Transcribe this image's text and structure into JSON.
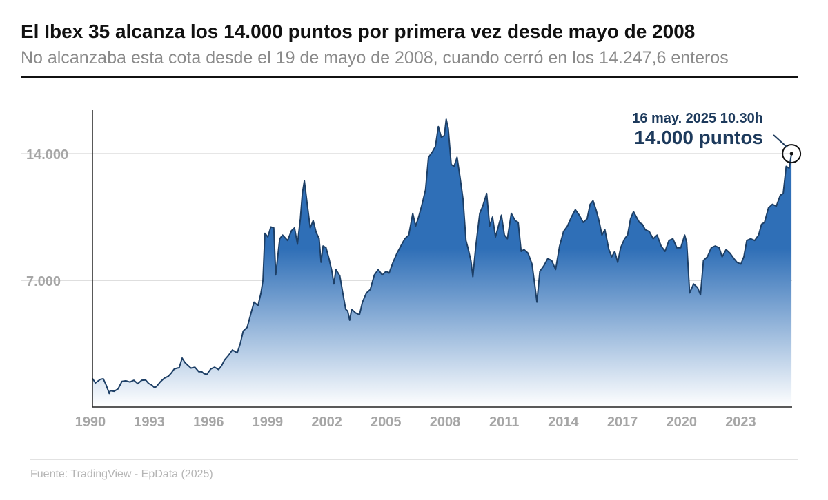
{
  "header": {
    "title": "El Ibex 35 alcanza los 14.000 puntos por primera vez desde mayo de 2008",
    "subtitle": "No alcanzaba esta cota desde el 19 de mayo de 2008, cuando cerró en los 14.247,6 enteros"
  },
  "source": "Fuente: TradingView - EpData (2025)",
  "colors": {
    "area_top": "#2f6fb7",
    "area_bottom": "#ffffff",
    "line": "#1d3f66",
    "annotation": "#1d3a5c",
    "tick_text": "#a6a6a6",
    "grid": "#bdbdbd"
  },
  "chart_data": {
    "type": "area",
    "title": "El Ibex 35 alcanza los 14.000 puntos por primera vez desde mayo de 2008",
    "xlabel": "",
    "ylabel": "",
    "xlim": [
      1989.9,
      2025.4
    ],
    "ylim": [
      0,
      16400
    ],
    "grid": true,
    "legend": "none",
    "x_ticks": [
      {
        "value": 1990,
        "label": "1990"
      },
      {
        "value": 1993,
        "label": "1993"
      },
      {
        "value": 1996,
        "label": "1996"
      },
      {
        "value": 1999,
        "label": "1999"
      },
      {
        "value": 2002,
        "label": "2002"
      },
      {
        "value": 2005,
        "label": "2005"
      },
      {
        "value": 2008,
        "label": "2008"
      },
      {
        "value": 2011,
        "label": "2011"
      },
      {
        "value": 2014,
        "label": "2014"
      },
      {
        "value": 2017,
        "label": "2017"
      },
      {
        "value": 2020,
        "label": "2020"
      },
      {
        "value": 2023,
        "label": "2023"
      }
    ],
    "y_ticks": [
      {
        "value": 7000,
        "label": "7.000"
      },
      {
        "value": 14000,
        "label": "14.000"
      }
    ],
    "series": [
      {
        "values": [
          [
            1989.9,
            1580
          ],
          [
            1990.05,
            1330
          ],
          [
            1990.3,
            1530
          ],
          [
            1990.45,
            1560
          ],
          [
            1990.6,
            1200
          ],
          [
            1990.75,
            750
          ],
          [
            1990.8,
            900
          ],
          [
            1991.0,
            870
          ],
          [
            1991.2,
            1000
          ],
          [
            1991.4,
            1420
          ],
          [
            1991.6,
            1450
          ],
          [
            1991.8,
            1380
          ],
          [
            1992.0,
            1480
          ],
          [
            1992.2,
            1290
          ],
          [
            1992.4,
            1480
          ],
          [
            1992.6,
            1490
          ],
          [
            1992.75,
            1300
          ],
          [
            1992.9,
            1220
          ],
          [
            1993.05,
            1070
          ],
          [
            1993.15,
            1130
          ],
          [
            1993.35,
            1400
          ],
          [
            1993.55,
            1600
          ],
          [
            1993.75,
            1700
          ],
          [
            1993.9,
            1880
          ],
          [
            1994.05,
            2100
          ],
          [
            1994.2,
            2150
          ],
          [
            1994.3,
            2170
          ],
          [
            1994.45,
            2700
          ],
          [
            1994.6,
            2450
          ],
          [
            1994.75,
            2300
          ],
          [
            1994.9,
            2150
          ],
          [
            1995.1,
            2200
          ],
          [
            1995.3,
            1950
          ],
          [
            1995.45,
            1950
          ],
          [
            1995.55,
            1850
          ],
          [
            1995.7,
            1800
          ],
          [
            1995.9,
            2100
          ],
          [
            1996.1,
            2200
          ],
          [
            1996.3,
            2070
          ],
          [
            1996.45,
            2280
          ],
          [
            1996.6,
            2600
          ],
          [
            1996.8,
            2850
          ],
          [
            1997.0,
            3150
          ],
          [
            1997.25,
            3000
          ],
          [
            1997.4,
            3500
          ],
          [
            1997.55,
            4200
          ],
          [
            1997.75,
            4400
          ],
          [
            1997.95,
            5200
          ],
          [
            1998.1,
            5800
          ],
          [
            1998.3,
            5600
          ],
          [
            1998.45,
            6300
          ],
          [
            1998.55,
            7000
          ],
          [
            1998.65,
            9600
          ],
          [
            1998.8,
            9400
          ],
          [
            1998.95,
            9950
          ],
          [
            1999.1,
            9900
          ],
          [
            1999.2,
            7300
          ],
          [
            1999.4,
            9300
          ],
          [
            1999.55,
            9500
          ],
          [
            1999.8,
            9200
          ],
          [
            2000.0,
            9750
          ],
          [
            2000.15,
            9900
          ],
          [
            2000.3,
            9000
          ],
          [
            2000.45,
            10400
          ],
          [
            2000.55,
            11800
          ],
          [
            2000.65,
            12500
          ],
          [
            2000.8,
            11200
          ],
          [
            2000.95,
            9900
          ],
          [
            2001.1,
            10300
          ],
          [
            2001.25,
            9650
          ],
          [
            2001.4,
            9300
          ],
          [
            2001.5,
            8000
          ],
          [
            2001.6,
            8900
          ],
          [
            2001.75,
            8800
          ],
          [
            2001.9,
            8200
          ],
          [
            2002.05,
            7500
          ],
          [
            2002.15,
            6800
          ],
          [
            2002.25,
            7600
          ],
          [
            2002.45,
            7250
          ],
          [
            2002.6,
            6300
          ],
          [
            2002.75,
            5400
          ],
          [
            2002.85,
            5300
          ],
          [
            2002.95,
            4800
          ],
          [
            2003.05,
            5400
          ],
          [
            2003.25,
            5200
          ],
          [
            2003.45,
            5100
          ],
          [
            2003.6,
            5800
          ],
          [
            2003.8,
            6300
          ],
          [
            2004.0,
            6500
          ],
          [
            2004.2,
            7300
          ],
          [
            2004.4,
            7600
          ],
          [
            2004.6,
            7300
          ],
          [
            2004.8,
            7500
          ],
          [
            2004.95,
            7400
          ],
          [
            2005.15,
            8000
          ],
          [
            2005.35,
            8500
          ],
          [
            2005.55,
            8900
          ],
          [
            2005.75,
            9300
          ],
          [
            2005.95,
            9500
          ],
          [
            2006.15,
            10700
          ],
          [
            2006.3,
            10000
          ],
          [
            2006.45,
            10500
          ],
          [
            2006.6,
            11100
          ],
          [
            2006.8,
            12000
          ],
          [
            2006.95,
            13800
          ],
          [
            2007.15,
            14100
          ],
          [
            2007.3,
            14400
          ],
          [
            2007.45,
            15500
          ],
          [
            2007.6,
            14900
          ],
          [
            2007.75,
            15000
          ],
          [
            2007.85,
            15900
          ],
          [
            2007.95,
            15400
          ],
          [
            2008.1,
            13400
          ],
          [
            2008.25,
            13300
          ],
          [
            2008.4,
            13800
          ],
          [
            2008.55,
            12700
          ],
          [
            2008.7,
            11500
          ],
          [
            2008.85,
            9200
          ],
          [
            2008.95,
            8800
          ],
          [
            2009.1,
            8100
          ],
          [
            2009.2,
            7200
          ],
          [
            2009.35,
            8900
          ],
          [
            2009.55,
            10700
          ],
          [
            2009.7,
            11100
          ],
          [
            2009.9,
            11800
          ],
          [
            2010.05,
            10000
          ],
          [
            2010.2,
            10500
          ],
          [
            2010.35,
            9400
          ],
          [
            2010.5,
            10000
          ],
          [
            2010.65,
            10600
          ],
          [
            2010.8,
            9500
          ],
          [
            2010.95,
            9300
          ],
          [
            2011.15,
            10700
          ],
          [
            2011.35,
            10300
          ],
          [
            2011.5,
            10200
          ],
          [
            2011.65,
            8600
          ],
          [
            2011.8,
            8700
          ],
          [
            2012.0,
            8500
          ],
          [
            2012.2,
            7900
          ],
          [
            2012.35,
            6700
          ],
          [
            2012.45,
            5800
          ],
          [
            2012.6,
            7500
          ],
          [
            2012.8,
            7800
          ],
          [
            2013.0,
            8200
          ],
          [
            2013.2,
            8100
          ],
          [
            2013.4,
            7600
          ],
          [
            2013.6,
            8900
          ],
          [
            2013.8,
            9700
          ],
          [
            2014.0,
            10000
          ],
          [
            2014.2,
            10500
          ],
          [
            2014.4,
            10900
          ],
          [
            2014.6,
            10600
          ],
          [
            2014.8,
            10200
          ],
          [
            2015.0,
            10400
          ],
          [
            2015.15,
            11200
          ],
          [
            2015.3,
            11400
          ],
          [
            2015.45,
            10900
          ],
          [
            2015.6,
            10300
          ],
          [
            2015.75,
            9500
          ],
          [
            2015.9,
            9800
          ],
          [
            2016.1,
            8700
          ],
          [
            2016.25,
            8300
          ],
          [
            2016.4,
            8600
          ],
          [
            2016.55,
            8000
          ],
          [
            2016.7,
            8800
          ],
          [
            2016.9,
            9300
          ],
          [
            2017.05,
            9500
          ],
          [
            2017.2,
            10400
          ],
          [
            2017.35,
            10800
          ],
          [
            2017.5,
            10500
          ],
          [
            2017.65,
            10200
          ],
          [
            2017.8,
            10100
          ],
          [
            2017.95,
            9800
          ],
          [
            2018.15,
            9700
          ],
          [
            2018.35,
            9300
          ],
          [
            2018.55,
            9500
          ],
          [
            2018.75,
            8900
          ],
          [
            2018.95,
            8600
          ],
          [
            2019.15,
            9200
          ],
          [
            2019.35,
            9300
          ],
          [
            2019.55,
            8800
          ],
          [
            2019.75,
            8800
          ],
          [
            2019.95,
            9500
          ],
          [
            2020.05,
            9100
          ],
          [
            2020.2,
            6300
          ],
          [
            2020.4,
            6800
          ],
          [
            2020.6,
            6600
          ],
          [
            2020.75,
            6200
          ],
          [
            2020.9,
            8100
          ],
          [
            2021.1,
            8300
          ],
          [
            2021.3,
            8800
          ],
          [
            2021.5,
            8900
          ],
          [
            2021.7,
            8800
          ],
          [
            2021.85,
            8300
          ],
          [
            2022.05,
            8700
          ],
          [
            2022.25,
            8500
          ],
          [
            2022.45,
            8200
          ],
          [
            2022.6,
            8000
          ],
          [
            2022.8,
            7900
          ],
          [
            2022.95,
            8300
          ],
          [
            2023.1,
            9200
          ],
          [
            2023.3,
            9300
          ],
          [
            2023.5,
            9200
          ],
          [
            2023.7,
            9500
          ],
          [
            2023.85,
            10100
          ],
          [
            2024.0,
            10200
          ],
          [
            2024.2,
            11000
          ],
          [
            2024.4,
            11200
          ],
          [
            2024.6,
            11100
          ],
          [
            2024.8,
            11700
          ],
          [
            2024.95,
            11800
          ],
          [
            2025.1,
            13300
          ],
          [
            2025.25,
            13200
          ],
          [
            2025.37,
            14000
          ]
        ]
      }
    ],
    "annotations": [
      {
        "x": 2025.37,
        "y": 14000,
        "label_date": "16 may. 2025 10.30h",
        "label_value": "14.000 puntos"
      }
    ]
  }
}
